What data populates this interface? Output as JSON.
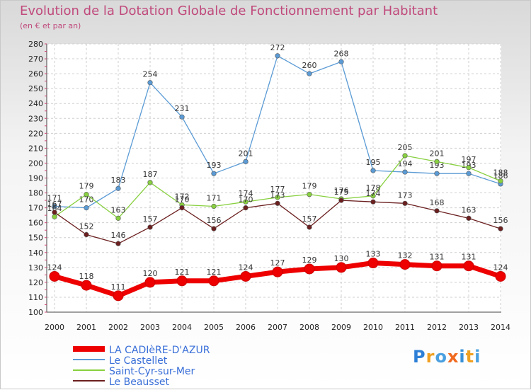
{
  "title": "Evolution de la Dotation Globale de Fonctionnement par Habitant",
  "subtitle": "(en € et par an)",
  "logo": "Proxiti",
  "chart_data": {
    "type": "line",
    "x": [
      "2000",
      "2001",
      "2002",
      "2003",
      "2004",
      "2005",
      "2006",
      "2007",
      "2008",
      "2009",
      "2010",
      "2011",
      "2012",
      "2013",
      "2014"
    ],
    "ylim": [
      100,
      280
    ],
    "yticks": [
      100,
      110,
      120,
      130,
      140,
      150,
      160,
      170,
      180,
      190,
      200,
      210,
      220,
      230,
      240,
      250,
      260,
      270,
      280
    ],
    "grid": true,
    "legend_position": "bottom-left",
    "series": [
      {
        "name": "LA CADIèRE-D'AZUR",
        "color": "#ee0000",
        "values": [
          124,
          118,
          111,
          120,
          121,
          121,
          124,
          127,
          129,
          130,
          133,
          132,
          131,
          131,
          124
        ]
      },
      {
        "name": "Le Castellet",
        "color": "#5b9bd5",
        "values": [
          171,
          170,
          183,
          254,
          231,
          193,
          201,
          272,
          260,
          268,
          195,
          194,
          193,
          193,
          186
        ]
      },
      {
        "name": "Saint-Cyr-sur-Mer",
        "color": "#88d040",
        "values": [
          164,
          179,
          163,
          187,
          172,
          171,
          174,
          177,
          179,
          176,
          178,
          205,
          201,
          197,
          188
        ]
      },
      {
        "name": "Le Beausset",
        "color": "#6b1f1f",
        "values": [
          167,
          152,
          146,
          157,
          170,
          156,
          170,
          173,
          157,
          175,
          174,
          173,
          168,
          163,
          156
        ]
      }
    ]
  }
}
